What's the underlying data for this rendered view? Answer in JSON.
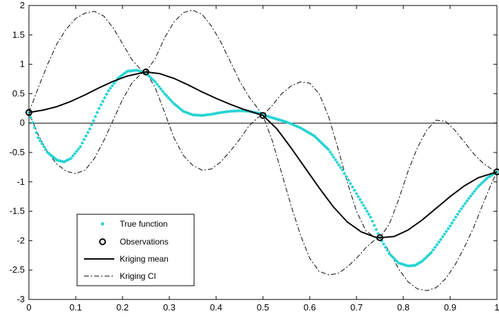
{
  "chart_data": {
    "type": "line",
    "title": "",
    "xlabel": "",
    "ylabel": "",
    "xlim": [
      0,
      1
    ],
    "ylim": [
      -3,
      2
    ],
    "xticks": [
      0,
      0.1,
      0.2,
      0.3,
      0.4,
      0.5,
      0.6,
      0.7,
      0.8,
      0.9,
      1
    ],
    "yticks": [
      2,
      1.5,
      1,
      0.5,
      0,
      -0.5,
      -1,
      -1.5,
      -2,
      -2.5,
      -3
    ],
    "xtick_labels": [
      "0",
      "0.1",
      "0.2",
      "0.3",
      "0.4",
      "0.5",
      "0.6",
      "0.7",
      "0.8",
      "0.9",
      "1"
    ],
    "ytick_labels": [
      "2",
      "1.5",
      "1",
      "0.5",
      "0",
      "-0.5",
      "-1",
      "-1.5",
      "-2",
      "-2.5",
      "-3"
    ],
    "grid": false,
    "zero_line": true,
    "legend_position": "bottom-left",
    "series": [
      {
        "name": "True function",
        "style": "cyan-dots",
        "color": "#22d3d3",
        "x": [
          0,
          0.02,
          0.04,
          0.06,
          0.075,
          0.09,
          0.11,
          0.13,
          0.15,
          0.17,
          0.19,
          0.21,
          0.23,
          0.25,
          0.27,
          0.29,
          0.31,
          0.33,
          0.35,
          0.37,
          0.39,
          0.41,
          0.43,
          0.45,
          0.47,
          0.49,
          0.5,
          0.52,
          0.55,
          0.58,
          0.61,
          0.64,
          0.67,
          0.7,
          0.73,
          0.75,
          0.77,
          0.79,
          0.81,
          0.825,
          0.84,
          0.86,
          0.88,
          0.9,
          0.92,
          0.94,
          0.96,
          0.98,
          1
        ],
        "y": [
          0.18,
          -0.25,
          -0.5,
          -0.63,
          -0.66,
          -0.6,
          -0.4,
          -0.1,
          0.25,
          0.55,
          0.76,
          0.88,
          0.9,
          0.85,
          0.7,
          0.5,
          0.33,
          0.2,
          0.14,
          0.13,
          0.15,
          0.18,
          0.2,
          0.21,
          0.2,
          0.17,
          0.14,
          0.09,
          0.02,
          -0.08,
          -0.22,
          -0.45,
          -0.8,
          -1.2,
          -1.6,
          -1.95,
          -2.22,
          -2.38,
          -2.43,
          -2.42,
          -2.35,
          -2.2,
          -1.98,
          -1.75,
          -1.5,
          -1.28,
          -1.08,
          -0.93,
          -0.83
        ]
      },
      {
        "name": "Observations",
        "style": "circle-markers",
        "color": "#000000",
        "x": [
          0,
          0.25,
          0.5,
          0.75,
          1
        ],
        "y": [
          0.18,
          0.87,
          0.13,
          -1.95,
          -0.83
        ]
      },
      {
        "name": "Kriging mean",
        "style": "solid",
        "color": "#000000",
        "x": [
          0,
          0.03,
          0.06,
          0.09,
          0.12,
          0.15,
          0.18,
          0.21,
          0.25,
          0.28,
          0.31,
          0.34,
          0.37,
          0.4,
          0.43,
          0.46,
          0.5,
          0.53,
          0.56,
          0.59,
          0.62,
          0.65,
          0.68,
          0.71,
          0.74,
          0.75,
          0.78,
          0.81,
          0.84,
          0.87,
          0.9,
          0.93,
          0.96,
          1
        ],
        "y": [
          0.18,
          0.22,
          0.28,
          0.37,
          0.48,
          0.6,
          0.71,
          0.8,
          0.87,
          0.84,
          0.76,
          0.65,
          0.53,
          0.42,
          0.32,
          0.23,
          0.13,
          -0.1,
          -0.42,
          -0.76,
          -1.1,
          -1.42,
          -1.68,
          -1.85,
          -1.94,
          -1.95,
          -1.93,
          -1.82,
          -1.65,
          -1.45,
          -1.25,
          -1.07,
          -0.93,
          -0.83
        ]
      },
      {
        "name": "Kriging CI",
        "style": "dash-dot",
        "color": "#000000",
        "x": [
          0,
          0.02,
          0.04,
          0.06,
          0.08,
          0.1,
          0.12,
          0.14,
          0.16,
          0.18,
          0.2,
          0.22,
          0.24,
          0.25,
          0.27,
          0.29,
          0.31,
          0.33,
          0.35,
          0.37,
          0.39,
          0.41,
          0.43,
          0.45,
          0.47,
          0.49,
          0.5,
          0.52,
          0.54,
          0.56,
          0.58,
          0.6,
          0.62,
          0.64,
          0.66,
          0.68,
          0.7,
          0.72,
          0.74,
          0.75,
          0.77,
          0.79,
          0.81,
          0.83,
          0.85,
          0.87,
          0.89,
          0.91,
          0.93,
          0.95,
          0.97,
          0.99,
          1
        ],
        "y": [
          0.18,
          0.6,
          1.0,
          1.35,
          1.6,
          1.78,
          1.87,
          1.9,
          1.82,
          1.62,
          1.35,
          1.08,
          0.9,
          0.87,
          1.1,
          1.45,
          1.72,
          1.88,
          1.92,
          1.85,
          1.65,
          1.38,
          1.05,
          0.72,
          0.45,
          0.24,
          0.13,
          0.3,
          0.5,
          0.63,
          0.7,
          0.68,
          0.5,
          0.12,
          -0.42,
          -1.0,
          -1.5,
          -1.83,
          -1.95,
          -1.95,
          -1.72,
          -1.3,
          -0.82,
          -0.42,
          -0.12,
          0.05,
          0.03,
          -0.12,
          -0.32,
          -0.52,
          -0.68,
          -0.79,
          -0.83
        ]
      },
      {
        "name": "Kriging CI lower",
        "style": "dash-dot",
        "color": "#000000",
        "x": [
          0,
          0.02,
          0.04,
          0.06,
          0.08,
          0.1,
          0.12,
          0.14,
          0.16,
          0.18,
          0.2,
          0.22,
          0.24,
          0.25,
          0.27,
          0.29,
          0.31,
          0.33,
          0.35,
          0.37,
          0.39,
          0.41,
          0.43,
          0.45,
          0.47,
          0.49,
          0.5,
          0.52,
          0.54,
          0.56,
          0.58,
          0.6,
          0.62,
          0.64,
          0.66,
          0.68,
          0.7,
          0.72,
          0.74,
          0.75,
          0.77,
          0.79,
          0.81,
          0.83,
          0.85,
          0.87,
          0.89,
          0.91,
          0.93,
          0.95,
          0.97,
          0.99,
          1
        ],
        "y": [
          0.18,
          -0.2,
          -0.5,
          -0.7,
          -0.82,
          -0.86,
          -0.8,
          -0.6,
          -0.3,
          0.05,
          0.4,
          0.68,
          0.84,
          0.87,
          0.6,
          0.18,
          -0.25,
          -0.55,
          -0.72,
          -0.8,
          -0.78,
          -0.66,
          -0.48,
          -0.28,
          -0.05,
          0.1,
          0.13,
          -0.3,
          -0.85,
          -1.4,
          -1.9,
          -2.3,
          -2.52,
          -2.58,
          -2.56,
          -2.45,
          -2.3,
          -2.12,
          -1.98,
          -1.95,
          -2.18,
          -2.48,
          -2.7,
          -2.82,
          -2.85,
          -2.8,
          -2.65,
          -2.42,
          -2.12,
          -1.78,
          -1.38,
          -1.0,
          -0.83
        ]
      }
    ]
  },
  "legend": {
    "items": [
      {
        "label": "True function"
      },
      {
        "label": "Observations"
      },
      {
        "label": "Kriging mean"
      },
      {
        "label": "Kriging CI"
      }
    ]
  }
}
